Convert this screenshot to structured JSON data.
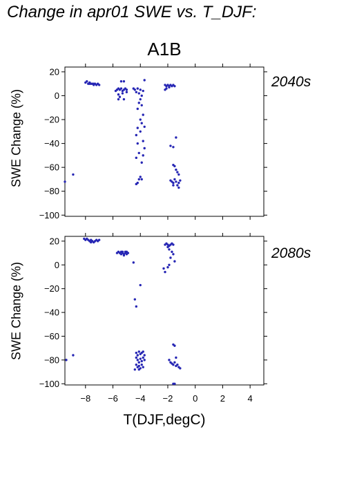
{
  "title": "Change in apr01 SWE vs. T_DJF:",
  "subtitle": "A1B",
  "colors": {
    "points": "#2626b4",
    "axes": "#000000",
    "background": "#ffffff"
  },
  "chart_data": [
    {
      "type": "scatter",
      "panel_label": "2040s",
      "xlabel": "",
      "ylabel": "SWE Change (%)",
      "xlim": [
        -9.5,
        5.0
      ],
      "ylim": [
        -101,
        24
      ],
      "xticks": [
        -8,
        -6,
        -4,
        -2,
        0,
        2,
        4
      ],
      "xtick_labels_shown": false,
      "yticks": [
        20,
        0,
        -20,
        -40,
        -60,
        -80,
        -100
      ],
      "ytick_labels": [
        "20",
        "0",
        "−20",
        "−40",
        "−60",
        "−80",
        "−100"
      ],
      "series": [
        {
          "points": [
            [
              -9.5,
              -72
            ],
            [
              -8.9,
              -66
            ],
            [
              -8.0,
              11
            ],
            [
              -7.9,
              12
            ],
            [
              -7.8,
              10
            ],
            [
              -7.7,
              11
            ],
            [
              -7.6,
              10
            ],
            [
              -7.5,
              10
            ],
            [
              -7.4,
              9
            ],
            [
              -7.3,
              10
            ],
            [
              -7.2,
              9
            ],
            [
              -7.1,
              10
            ],
            [
              -7.0,
              9
            ],
            [
              -7.4,
              10
            ],
            [
              -7.7,
              10
            ],
            [
              -5.8,
              4
            ],
            [
              -5.7,
              5
            ],
            [
              -5.6,
              6
            ],
            [
              -5.5,
              5
            ],
            [
              -5.4,
              6
            ],
            [
              -5.3,
              4
            ],
            [
              -5.2,
              5
            ],
            [
              -5.1,
              6
            ],
            [
              -5.0,
              5
            ],
            [
              -5.6,
              1
            ],
            [
              -5.5,
              -1
            ],
            [
              -5.3,
              2
            ],
            [
              -5.2,
              -3
            ],
            [
              -5.6,
              -3
            ],
            [
              -5.4,
              12
            ],
            [
              -5.2,
              12
            ],
            [
              -5.0,
              3
            ],
            [
              -4.5,
              6
            ],
            [
              -4.4,
              5
            ],
            [
              -4.3,
              3
            ],
            [
              -4.2,
              6
            ],
            [
              -4.1,
              2
            ],
            [
              -4.0,
              5
            ],
            [
              -3.9,
              0
            ],
            [
              -3.8,
              4
            ],
            [
              -3.7,
              13
            ],
            [
              -4.0,
              -3
            ],
            [
              -4.1,
              -6
            ],
            [
              -3.9,
              -8
            ],
            [
              -4.2,
              -11
            ],
            [
              -3.8,
              -16
            ],
            [
              -4.0,
              -20
            ],
            [
              -3.9,
              -23
            ],
            [
              -4.2,
              -27
            ],
            [
              -4.0,
              -30
            ],
            [
              -4.3,
              -33
            ],
            [
              -3.7,
              -26
            ],
            [
              -3.8,
              -38
            ],
            [
              -4.2,
              -40
            ],
            [
              -3.7,
              -44
            ],
            [
              -4.1,
              -48
            ],
            [
              -4.3,
              -52
            ],
            [
              -3.8,
              -50
            ],
            [
              -3.9,
              -56
            ],
            [
              -4.0,
              -68
            ],
            [
              -4.1,
              -70
            ],
            [
              -4.2,
              -73
            ],
            [
              -3.9,
              -70
            ],
            [
              -4.3,
              -74
            ],
            [
              -2.2,
              9
            ],
            [
              -2.1,
              8
            ],
            [
              -2.0,
              9
            ],
            [
              -1.9,
              8
            ],
            [
              -1.8,
              9
            ],
            [
              -1.7,
              8
            ],
            [
              -1.6,
              9
            ],
            [
              -1.5,
              8
            ],
            [
              -2.1,
              6
            ],
            [
              -1.9,
              7
            ],
            [
              -2.2,
              5
            ],
            [
              -1.8,
              -42
            ],
            [
              -1.6,
              -43
            ],
            [
              -1.4,
              -35
            ],
            [
              -1.6,
              -58
            ],
            [
              -1.5,
              -59
            ],
            [
              -1.4,
              -62
            ],
            [
              -1.3,
              -64
            ],
            [
              -1.2,
              -66
            ],
            [
              -1.8,
              -71
            ],
            [
              -1.7,
              -72
            ],
            [
              -1.6,
              -73
            ],
            [
              -1.5,
              -70
            ],
            [
              -1.4,
              -72
            ],
            [
              -1.3,
              -75
            ],
            [
              -1.2,
              -73
            ],
            [
              -1.1,
              -71
            ],
            [
              -1.6,
              -75
            ],
            [
              -1.2,
              -77
            ]
          ]
        }
      ]
    },
    {
      "type": "scatter",
      "panel_label": "2080s",
      "xlabel": "T(DJF,degC)",
      "ylabel": "SWE Change (%)",
      "xlim": [
        -9.5,
        5.0
      ],
      "ylim": [
        -101,
        24
      ],
      "xticks": [
        -8,
        -6,
        -4,
        -2,
        0,
        2,
        4
      ],
      "xtick_labels": [
        "−8",
        "−6",
        "−4",
        "−2",
        "0",
        "2",
        "4"
      ],
      "yticks": [
        20,
        0,
        -20,
        -40,
        -60,
        -80,
        -100
      ],
      "ytick_labels": [
        "20",
        "0",
        "−20",
        "−40",
        "−60",
        "−80",
        "−100"
      ],
      "series": [
        {
          "points": [
            [
              -9.4,
              -80
            ],
            [
              -8.9,
              -76
            ],
            [
              -8.1,
              22
            ],
            [
              -8.0,
              21
            ],
            [
              -7.9,
              22
            ],
            [
              -7.8,
              21
            ],
            [
              -7.7,
              20
            ],
            [
              -7.6,
              21
            ],
            [
              -7.5,
              20
            ],
            [
              -7.4,
              19
            ],
            [
              -7.3,
              20
            ],
            [
              -7.2,
              21
            ],
            [
              -7.1,
              20
            ],
            [
              -7.0,
              21
            ],
            [
              -7.6,
              19
            ],
            [
              -5.7,
              10
            ],
            [
              -5.6,
              11
            ],
            [
              -5.5,
              10
            ],
            [
              -5.4,
              11
            ],
            [
              -5.3,
              10
            ],
            [
              -5.2,
              9
            ],
            [
              -5.1,
              10
            ],
            [
              -5.0,
              11
            ],
            [
              -4.9,
              10
            ],
            [
              -5.4,
              9
            ],
            [
              -5.2,
              8
            ],
            [
              -5.0,
              9
            ],
            [
              -5.3,
              11
            ],
            [
              -5.1,
              11
            ],
            [
              -4.5,
              2
            ],
            [
              -4.0,
              -17
            ],
            [
              -4.4,
              -29
            ],
            [
              -4.3,
              -35
            ],
            [
              -4.3,
              -74
            ],
            [
              -4.2,
              -76
            ],
            [
              -4.1,
              -73
            ],
            [
              -4.0,
              -75
            ],
            [
              -3.9,
              -74
            ],
            [
              -3.8,
              -73
            ],
            [
              -3.7,
              -76
            ],
            [
              -4.3,
              -78
            ],
            [
              -4.2,
              -80
            ],
            [
              -4.1,
              -82
            ],
            [
              -4.0,
              -79
            ],
            [
              -3.9,
              -81
            ],
            [
              -3.8,
              -78
            ],
            [
              -3.7,
              -80
            ],
            [
              -4.3,
              -84
            ],
            [
              -4.2,
              -86
            ],
            [
              -4.1,
              -85
            ],
            [
              -4.0,
              -87
            ],
            [
              -3.9,
              -84
            ],
            [
              -3.8,
              -86
            ],
            [
              -4.4,
              -88
            ],
            [
              -4.1,
              -88
            ],
            [
              -2.2,
              17
            ],
            [
              -2.1,
              18
            ],
            [
              -2.0,
              17
            ],
            [
              -1.9,
              16
            ],
            [
              -1.8,
              17
            ],
            [
              -1.7,
              18
            ],
            [
              -1.6,
              17
            ],
            [
              -2.0,
              15
            ],
            [
              -1.9,
              13
            ],
            [
              -1.7,
              11
            ],
            [
              -1.6,
              9
            ],
            [
              -1.8,
              6
            ],
            [
              -1.5,
              3
            ],
            [
              -1.9,
              0
            ],
            [
              -2.0,
              -2
            ],
            [
              -2.3,
              -3
            ],
            [
              -2.2,
              -6
            ],
            [
              -1.6,
              -67
            ],
            [
              -1.5,
              -68
            ],
            [
              -1.4,
              -78
            ],
            [
              -1.9,
              -80
            ],
            [
              -1.8,
              -82
            ],
            [
              -1.7,
              -83
            ],
            [
              -1.6,
              -84
            ],
            [
              -1.5,
              -82
            ],
            [
              -1.4,
              -85
            ],
            [
              -1.3,
              -84
            ],
            [
              -1.2,
              -86
            ],
            [
              -1.1,
              -87
            ],
            [
              -1.5,
              -100
            ],
            [
              -1.6,
              -100
            ]
          ]
        }
      ]
    }
  ]
}
